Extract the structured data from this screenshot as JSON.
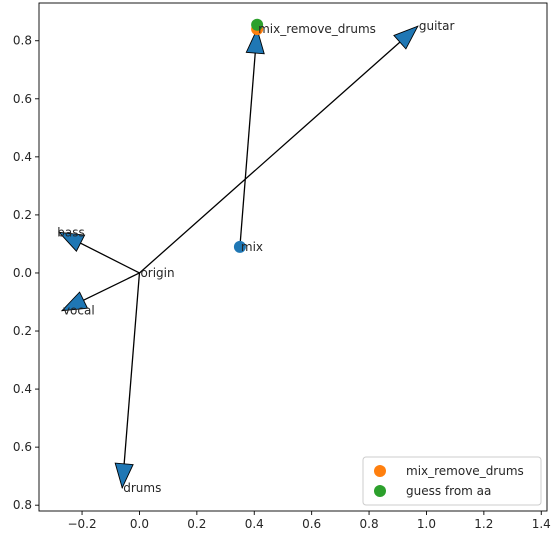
{
  "chart_data": {
    "type": "scatter",
    "title": "",
    "xlabel": "",
    "ylabel": "",
    "xlim": [
      -0.35,
      1.42
    ],
    "ylim": [
      -0.82,
      0.93
    ],
    "x_ticks": [
      -0.2,
      0.0,
      0.2,
      0.4,
      0.6,
      0.8,
      1.0,
      1.2,
      1.4
    ],
    "x_tick_labels": [
      "−0.2",
      "0.0",
      "0.2",
      "0.4",
      "0.6",
      "0.8",
      "1.0",
      "1.2",
      "1.4"
    ],
    "y_ticks": [
      0.8,
      0.6,
      0.4,
      0.2,
      0.0,
      -0.2,
      -0.4,
      -0.6,
      -0.8
    ],
    "y_tick_labels": [
      "0.8",
      "0.6",
      "0.4",
      "0.2",
      "0.0",
      "0.2",
      "0.4",
      "0.6",
      "0.8"
    ],
    "grid": false,
    "legend_position": "bottom-right",
    "arrows": [
      {
        "from": [
          0.0,
          0.0
        ],
        "to": [
          -0.28,
          0.14
        ],
        "color": "#1f77b4"
      },
      {
        "from": [
          0.0,
          0.0
        ],
        "to": [
          -0.27,
          -0.13
        ],
        "color": "#1f77b4"
      },
      {
        "from": [
          0.0,
          0.0
        ],
        "to": [
          -0.06,
          -0.74
        ],
        "color": "#1f77b4"
      },
      {
        "from": [
          0.0,
          0.0
        ],
        "to": [
          0.97,
          0.85
        ],
        "color": "#1f77b4"
      },
      {
        "from": [
          0.35,
          0.09
        ],
        "to": [
          0.41,
          0.84
        ],
        "color": "#1f77b4"
      }
    ],
    "annotations": [
      {
        "text": "guitar",
        "x": 0.97,
        "y": 0.85
      },
      {
        "text": "mix_remove_drums",
        "x": 0.41,
        "y": 0.84
      },
      {
        "text": "bass",
        "x": -0.29,
        "y": 0.14
      },
      {
        "text": "mix",
        "x": 0.35,
        "y": 0.09
      },
      {
        "text": "origin",
        "x": 0.0,
        "y": 0.0
      },
      {
        "text": "vocal",
        "x": -0.27,
        "y": -0.13
      },
      {
        "text": "drums",
        "x": -0.06,
        "y": -0.74
      }
    ],
    "points": [
      {
        "x": 0.35,
        "y": 0.09,
        "color": "#1f77b4"
      },
      {
        "x": 0.41,
        "y": 0.84,
        "color": "#ff7f0e"
      },
      {
        "x": 0.41,
        "y": 0.855,
        "color": "#2ca02c"
      }
    ],
    "legend": [
      {
        "label": "mix_remove_drums",
        "color": "#ff7f0e"
      },
      {
        "label": "guess from aa",
        "color": "#2ca02c"
      }
    ],
    "colors": {
      "arrow_fill": "#1f77b4",
      "arrow_line": "#000000",
      "axes": "#262626"
    }
  }
}
